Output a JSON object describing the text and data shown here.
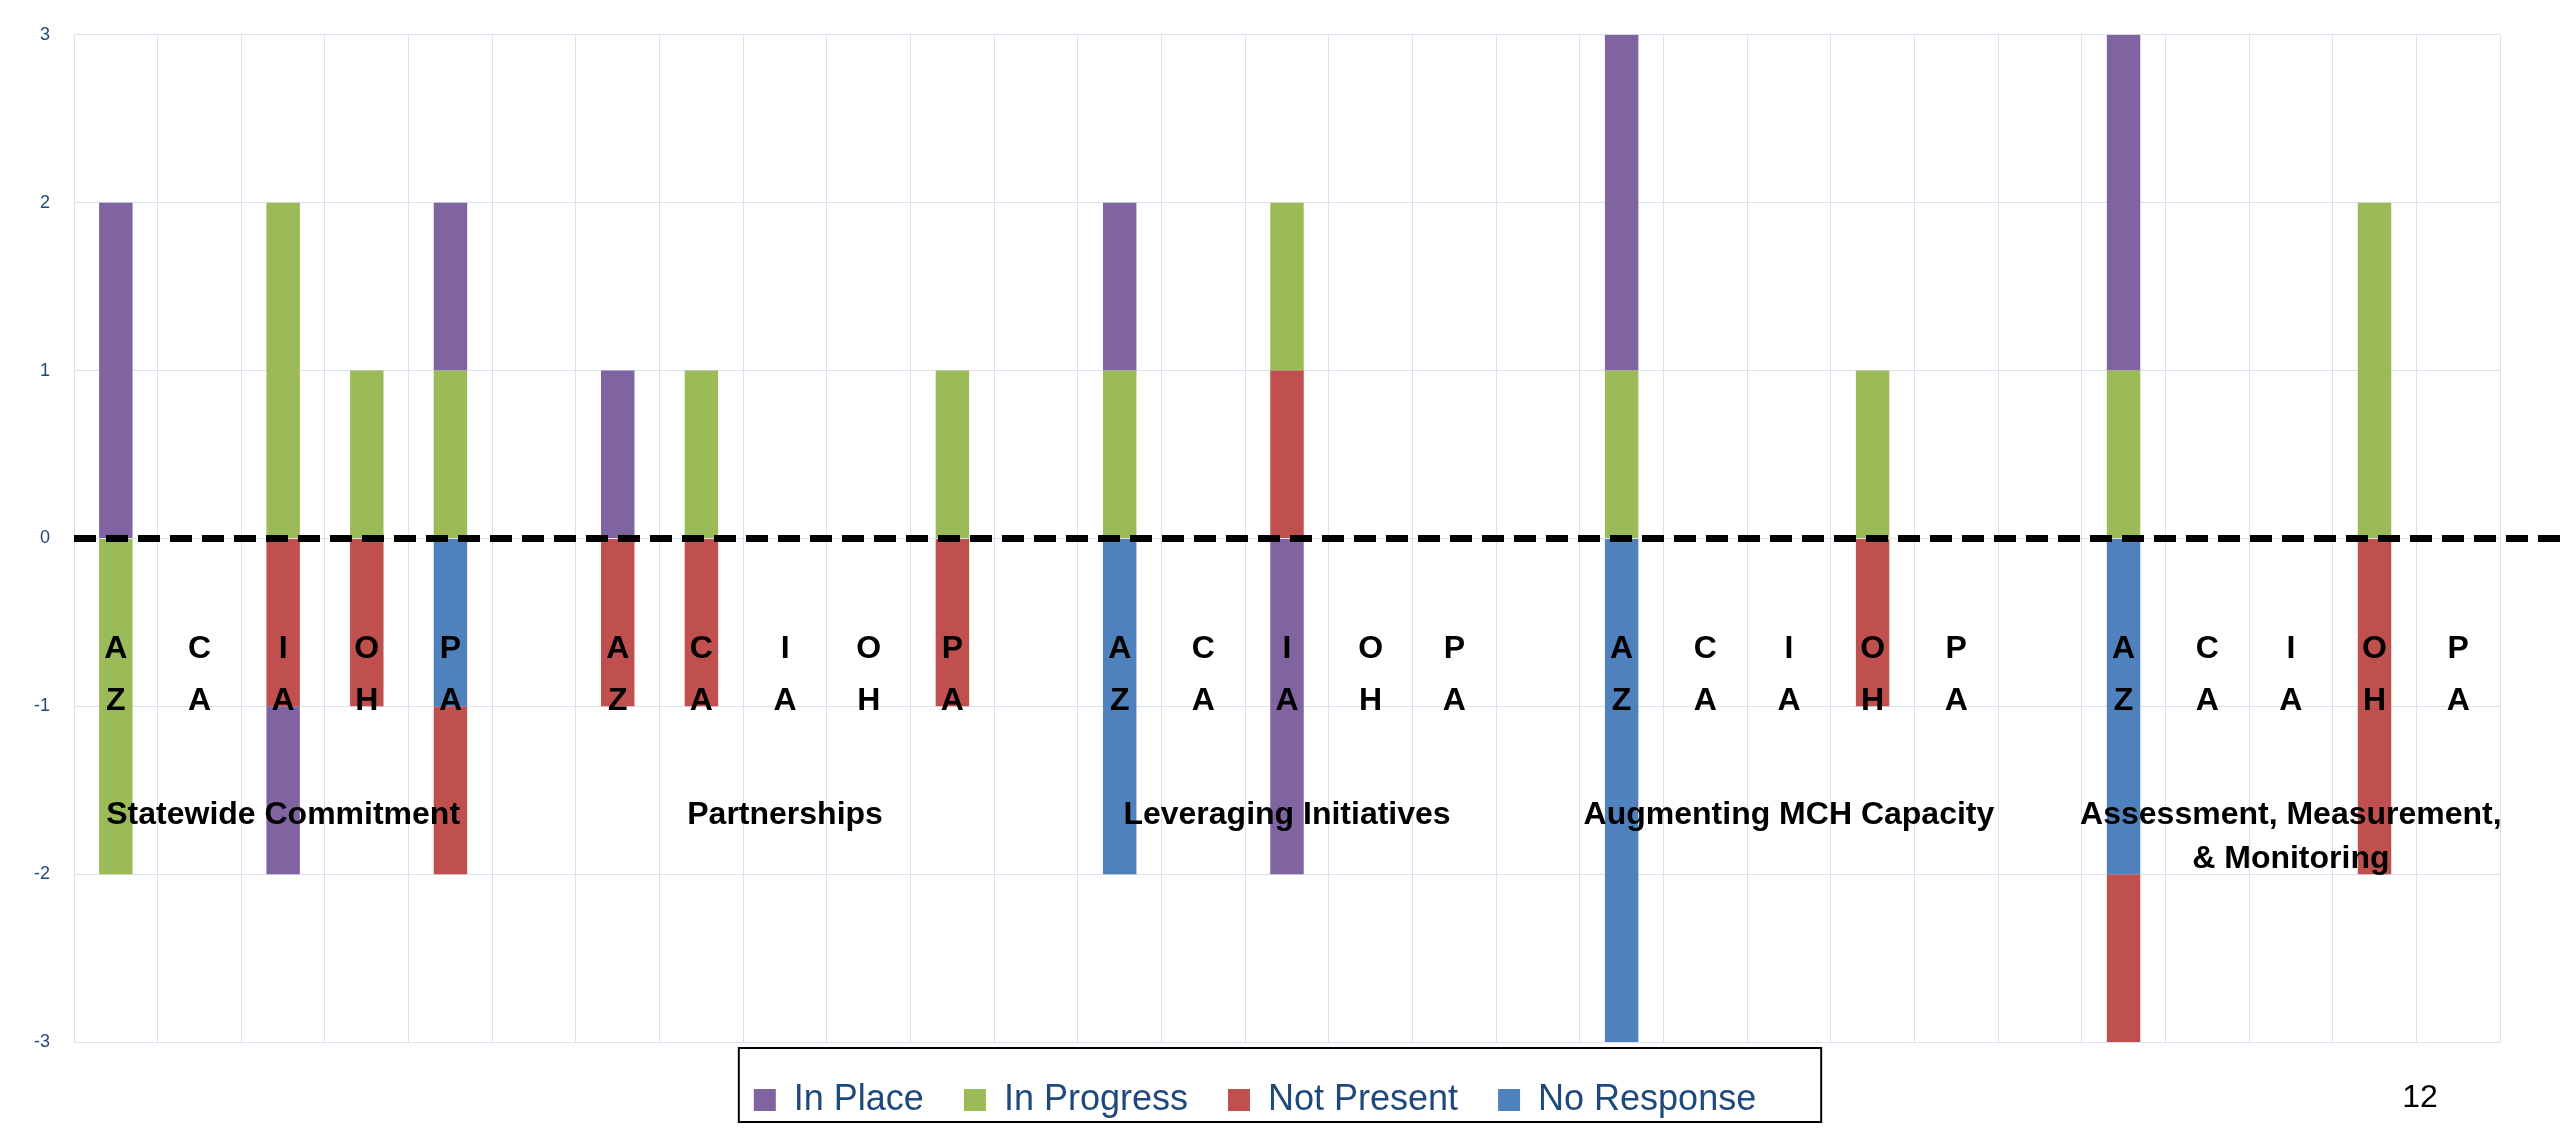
{
  "chart_data": {
    "type": "bar",
    "stacked": true,
    "categories": [
      "AZ",
      "CA",
      "IA",
      "OH",
      "PA",
      null,
      "AZ",
      "CA",
      "IA",
      "OH",
      "PA",
      null,
      "AZ",
      "CA",
      "IA",
      "OH",
      "PA",
      null,
      "AZ",
      "CA",
      "IA",
      "OH",
      "PA",
      null,
      "AZ",
      "CA",
      "IA",
      "OH",
      "PA"
    ],
    "series": [
      {
        "name": "No Response",
        "color": "#4f81bd",
        "values": [
          null,
          null,
          null,
          null,
          -1,
          null,
          null,
          null,
          null,
          null,
          null,
          null,
          -2,
          null,
          null,
          null,
          null,
          null,
          -3,
          null,
          null,
          null,
          null,
          null,
          -2,
          null,
          null,
          null,
          null
        ]
      },
      {
        "name": "Not Present",
        "color": "#c0504d",
        "values": [
          null,
          null,
          -1,
          -1,
          -1,
          null,
          -1,
          -1,
          null,
          null,
          -1,
          null,
          null,
          null,
          1,
          null,
          null,
          null,
          null,
          null,
          null,
          -1,
          null,
          null,
          -1,
          null,
          null,
          -2,
          null
        ]
      },
      {
        "name": "In Progress",
        "color": "#9bbb59",
        "values": [
          -2,
          null,
          2,
          1,
          1,
          null,
          null,
          1,
          null,
          null,
          1,
          null,
          1,
          null,
          1,
          null,
          null,
          null,
          1,
          null,
          null,
          1,
          null,
          null,
          1,
          null,
          null,
          2,
          null
        ]
      },
      {
        "name": "In Place",
        "color": "#8064a2",
        "values": [
          2,
          null,
          -1,
          null,
          1,
          null,
          1,
          null,
          null,
          null,
          null,
          null,
          1,
          null,
          -2,
          null,
          null,
          null,
          2,
          null,
          null,
          null,
          null,
          null,
          2,
          null,
          null,
          null,
          null
        ]
      }
    ],
    "ylim": [
      -3,
      3
    ],
    "yticks": [
      -3,
      -2,
      -1,
      0,
      1,
      2,
      3
    ],
    "grid": true,
    "legend": "bottom",
    "ref_lines": [
      {
        "axis": "y",
        "value": 0,
        "color": "#000000",
        "line_style": "dashed"
      }
    ],
    "annotations": [
      "Statewide Commitment",
      "Partnerships",
      "Leveraging Initiatives",
      "Augmenting MCH Capacity",
      "Assessment, Measurement,\n& Monitoring",
      "12"
    ]
  }
}
